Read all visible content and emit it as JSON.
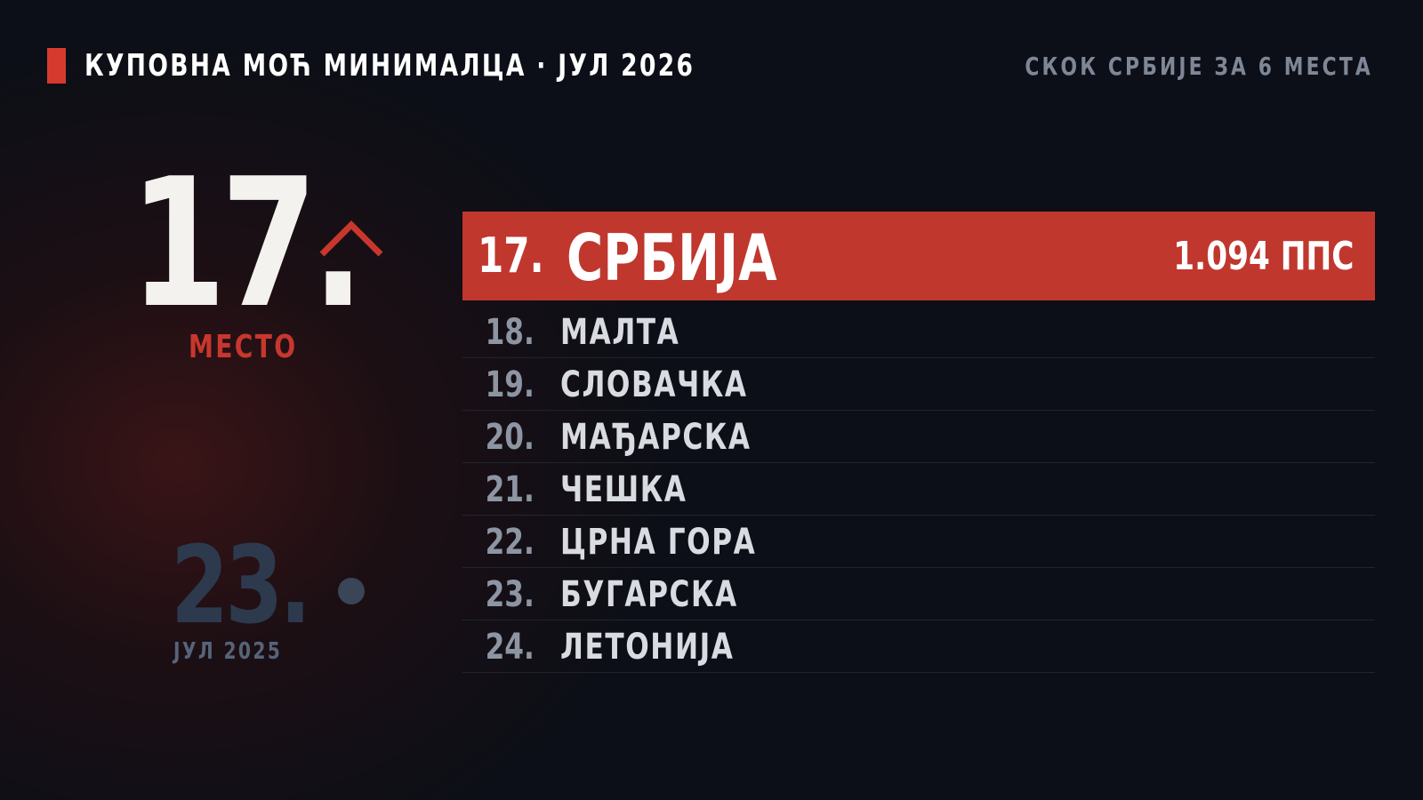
{
  "header": {
    "title": "КУПОВНА МОЋ МИНИМАЛЦА · ЈУЛ 2026",
    "note": "СКОК СРБИЈЕ ЗА 6 МЕСТА"
  },
  "current": {
    "rank": "17.",
    "label": "МЕСТО"
  },
  "previous": {
    "rank": "23.",
    "label": "ЈУЛ 2025"
  },
  "highlight": {
    "rank": "17.",
    "country": "СРБИЈА",
    "value": "1.094 ППС"
  },
  "rows": [
    {
      "rank": "18.",
      "country": "МАЛТА"
    },
    {
      "rank": "19.",
      "country": "СЛОВАЧКА"
    },
    {
      "rank": "20.",
      "country": "МАЂАРСКА"
    },
    {
      "rank": "21.",
      "country": "ЧЕШКА"
    },
    {
      "rank": "22.",
      "country": "ЦРНА ГОРА"
    },
    {
      "rank": "23.",
      "country": "БУГАРСКА"
    },
    {
      "rank": "24.",
      "country": "ЛЕТОНИЈА"
    }
  ]
}
